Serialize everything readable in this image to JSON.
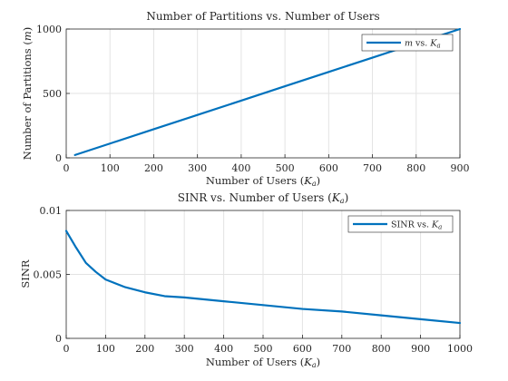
{
  "colors": {
    "series": "#0072BD",
    "axis": "#262626",
    "grid": "#e3e3e3"
  },
  "chart_data": [
    {
      "type": "line",
      "title": "Number of Partitions vs. Number of Users",
      "xlabel": "Number of Users (K_a)",
      "ylabel": "Number of Partitions (m)",
      "xlim": [
        0,
        900
      ],
      "ylim": [
        0,
        1000
      ],
      "xticks": [
        "0",
        "100",
        "200",
        "300",
        "400",
        "500",
        "600",
        "700",
        "800",
        "900"
      ],
      "yticks": [
        "0",
        "500",
        "1000"
      ],
      "grid": true,
      "legend_position": "top-right",
      "series": [
        {
          "name": "m vs. K_a",
          "x": [
            20,
            100,
            200,
            300,
            400,
            500,
            600,
            700,
            800,
            900
          ],
          "y": [
            22,
            111,
            222,
            333,
            444,
            556,
            667,
            778,
            889,
            1000
          ]
        }
      ]
    },
    {
      "type": "line",
      "title": "SINR vs. Number of Users (K_a)",
      "xlabel": "Number of Users (K_a)",
      "ylabel": "SINR",
      "xlim": [
        0,
        1000
      ],
      "ylim": [
        0,
        0.01
      ],
      "xticks": [
        "0",
        "100",
        "200",
        "300",
        "400",
        "500",
        "600",
        "700",
        "800",
        "900",
        "1000"
      ],
      "yticks": [
        "0",
        "0.005",
        "0.01"
      ],
      "grid": true,
      "legend_position": "top-right",
      "series": [
        {
          "name": "SINR vs. K_a",
          "x": [
            0,
            25,
            50,
            75,
            100,
            150,
            200,
            250,
            300,
            400,
            500,
            600,
            700,
            800,
            900,
            1000
          ],
          "y": [
            0.0084,
            0.0071,
            0.0059,
            0.0052,
            0.0046,
            0.004,
            0.0036,
            0.0033,
            0.0032,
            0.0029,
            0.0026,
            0.0023,
            0.0021,
            0.0018,
            0.0015,
            0.0012
          ]
        }
      ]
    }
  ]
}
